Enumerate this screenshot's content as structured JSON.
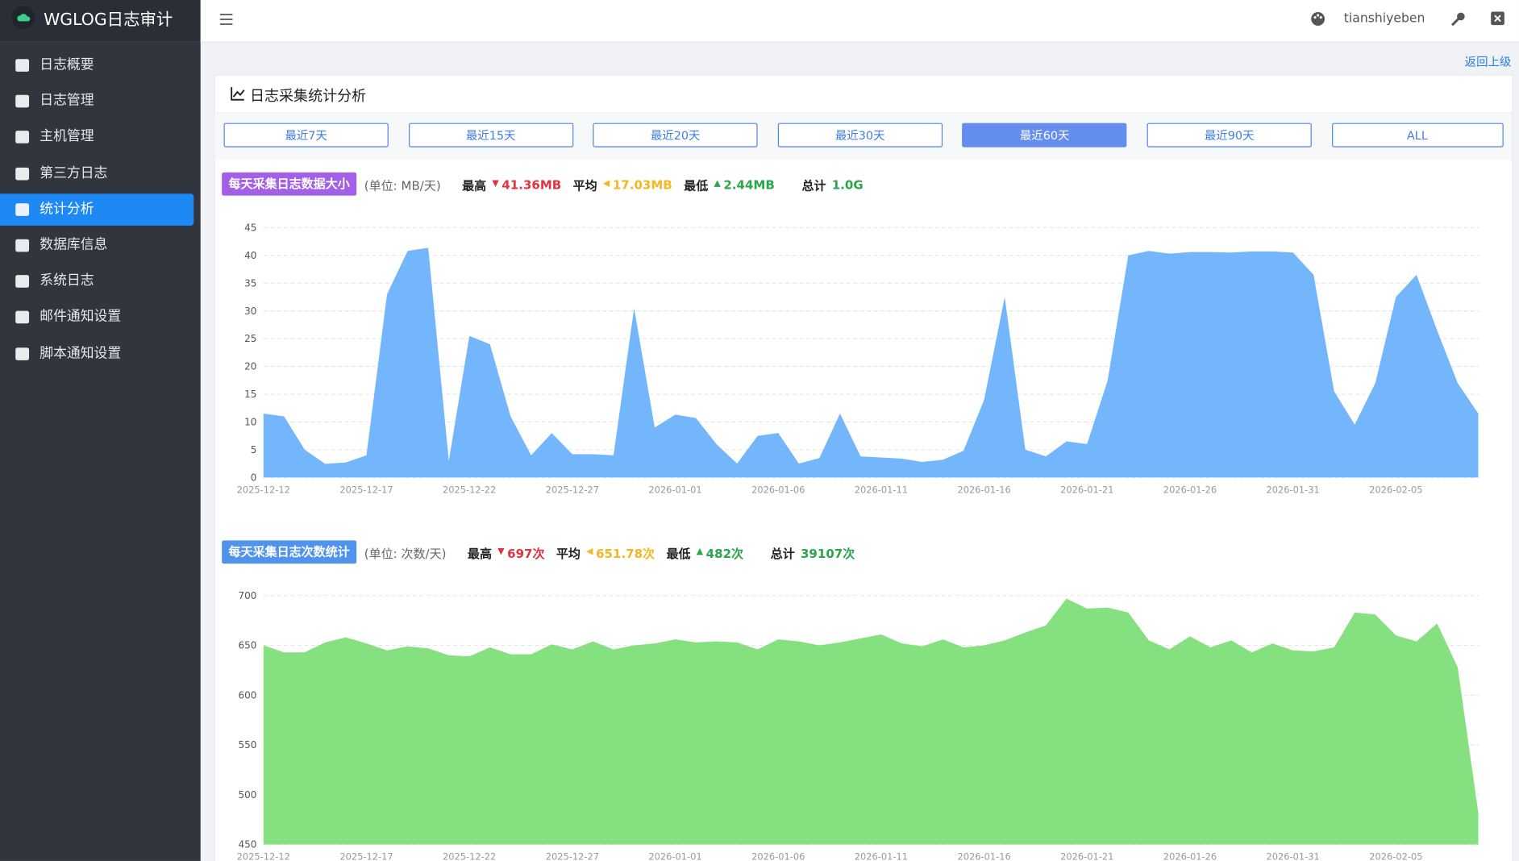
{
  "sidebar": {
    "brand": "WGLOG日志审计",
    "menu": [
      "日志概要",
      "日志管理",
      "主机管理",
      "第三方日志",
      "统计分析",
      "数据库信息",
      "系统日志",
      "邮件通知设置",
      "脚本通知设置"
    ],
    "active": 4
  },
  "header": {
    "user": "tianshiyeben"
  },
  "back_link": "返回上级",
  "panel": {
    "title": "日志采集统计分析",
    "ranges": [
      "最近7天",
      "最近15天",
      "最近20天",
      "最近30天",
      "最近60天",
      "最近90天",
      "ALL"
    ],
    "active_range": 4
  },
  "chart_data": [
    {
      "type": "area",
      "title": "每天采集日志数据大小",
      "badge_color": "#a35fe8",
      "unit": "(单位: MB/天)",
      "summary": [
        {
          "label": "最高",
          "value": "41.36MB"
        },
        {
          "label": "平均",
          "value": "17.03MB"
        },
        {
          "label": "最低",
          "value": "2.44MB"
        },
        {
          "label": "总计",
          "value": "1.0G"
        }
      ],
      "color": "#74b6fb",
      "grid": true,
      "ylim": [
        0,
        45
      ],
      "yticks": [
        0,
        5,
        10,
        15,
        20,
        25,
        30,
        35,
        40,
        45
      ],
      "x": [
        "2025-12-12",
        "2025-12-13",
        "2025-12-14",
        "2025-12-15",
        "2025-12-16",
        "2025-12-17",
        "2025-12-18",
        "2025-12-19",
        "2025-12-20",
        "2025-12-21",
        "2025-12-22",
        "2025-12-23",
        "2025-12-24",
        "2025-12-25",
        "2025-12-26",
        "2025-12-27",
        "2025-12-28",
        "2025-12-29",
        "2025-12-30",
        "2025-12-31",
        "2026-01-01",
        "2026-01-02",
        "2026-01-03",
        "2026-01-04",
        "2026-01-05",
        "2026-01-06",
        "2026-01-07",
        "2026-01-08",
        "2026-01-09",
        "2026-01-10",
        "2026-01-11",
        "2026-01-12",
        "2026-01-13",
        "2026-01-14",
        "2026-01-15",
        "2026-01-16",
        "2026-01-17",
        "2026-01-18",
        "2026-01-19",
        "2026-01-20",
        "2026-01-21",
        "2026-01-22",
        "2026-01-23",
        "2026-01-24",
        "2026-01-25",
        "2026-01-26",
        "2026-01-27",
        "2026-01-28",
        "2026-01-29",
        "2026-01-30",
        "2026-01-31",
        "2026-02-01",
        "2026-02-02",
        "2026-02-03",
        "2026-02-04",
        "2026-02-05",
        "2026-02-06",
        "2026-02-07",
        "2026-02-08",
        "2026-02-09"
      ],
      "values": [
        11.5,
        11,
        5,
        2.44,
        2.7,
        4,
        33,
        40.8,
        41.36,
        3,
        25.5,
        24,
        11,
        4,
        8,
        4.2,
        4.2,
        4,
        30.5,
        9,
        11.3,
        10.7,
        6,
        2.5,
        7.5,
        8,
        2.5,
        3.5,
        11.5,
        3.8,
        3.6,
        3.4,
        2.8,
        3.2,
        4.8,
        14,
        32.5,
        5,
        3.8,
        6.5,
        6,
        17.5,
        40,
        40.8,
        40.3,
        40.6,
        40.6,
        40.5,
        40.7,
        40.7,
        40.5,
        36.5,
        15.5,
        9.5,
        17,
        32.5,
        36.5,
        26.5,
        17,
        11.5
      ]
    },
    {
      "type": "area",
      "title": "每天采集日志次数统计",
      "badge_color": "#4f93ee",
      "unit": "(单位: 次数/天)",
      "summary": [
        {
          "label": "最高",
          "value": "697次"
        },
        {
          "label": "平均",
          "value": "651.78次"
        },
        {
          "label": "最低",
          "value": "482次"
        },
        {
          "label": "总计",
          "value": "39107次"
        }
      ],
      "color": "#85e07f",
      "grid": true,
      "ylim": [
        450,
        700
      ],
      "yticks": [
        450,
        500,
        550,
        600,
        650,
        700
      ],
      "x": [
        "2025-12-12",
        "2025-12-13",
        "2025-12-14",
        "2025-12-15",
        "2025-12-16",
        "2025-12-17",
        "2025-12-18",
        "2025-12-19",
        "2025-12-20",
        "2025-12-21",
        "2025-12-22",
        "2025-12-23",
        "2025-12-24",
        "2025-12-25",
        "2025-12-26",
        "2025-12-27",
        "2025-12-28",
        "2025-12-29",
        "2025-12-30",
        "2025-12-31",
        "2026-01-01",
        "2026-01-02",
        "2026-01-03",
        "2026-01-04",
        "2026-01-05",
        "2026-01-06",
        "2026-01-07",
        "2026-01-08",
        "2026-01-09",
        "2026-01-10",
        "2026-01-11",
        "2026-01-12",
        "2026-01-13",
        "2026-01-14",
        "2026-01-15",
        "2026-01-16",
        "2026-01-17",
        "2026-01-18",
        "2026-01-19",
        "2026-01-20",
        "2026-01-21",
        "2026-01-22",
        "2026-01-23",
        "2026-01-24",
        "2026-01-25",
        "2026-01-26",
        "2026-01-27",
        "2026-01-28",
        "2026-01-29",
        "2026-01-30",
        "2026-01-31",
        "2026-02-01",
        "2026-02-02",
        "2026-02-03",
        "2026-02-04",
        "2026-02-05",
        "2026-02-06",
        "2026-02-07",
        "2026-02-08",
        "2026-02-09"
      ],
      "values": [
        650,
        643,
        643,
        653,
        658,
        652,
        645,
        649,
        647,
        640,
        639,
        648,
        641,
        641,
        651,
        646,
        654,
        646,
        650,
        652,
        656,
        653,
        654,
        653,
        646,
        656,
        654,
        650,
        653,
        657,
        661,
        652,
        649,
        656,
        648,
        650,
        655,
        663,
        670,
        697,
        687,
        688,
        683,
        655,
        646,
        659,
        648,
        655,
        643,
        652,
        645,
        644,
        648,
        683,
        681,
        660,
        654,
        672,
        628,
        482
      ]
    }
  ]
}
